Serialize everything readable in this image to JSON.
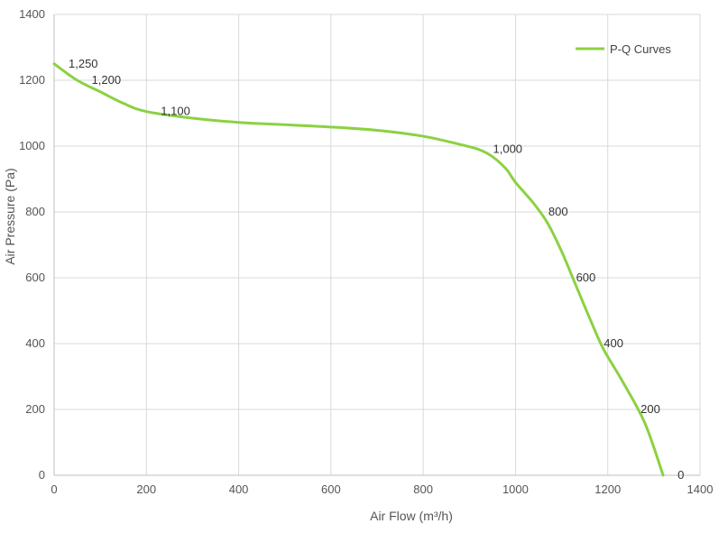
{
  "chart_data": {
    "type": "line",
    "xlabel": "Air Flow  (m³/h)",
    "ylabel": "Air Pressure  (Pa)",
    "xlim": [
      0,
      1400
    ],
    "ylim": [
      0,
      1400
    ],
    "xticks": [
      0,
      200,
      400,
      600,
      800,
      1000,
      1200,
      1400
    ],
    "yticks": [
      0,
      200,
      400,
      600,
      800,
      1000,
      1200,
      1400
    ],
    "grid": true,
    "legend_position": "top-right",
    "series": [
      {
        "name": "P-Q Curves",
        "color": "#8cd142",
        "x": [
          0,
          50,
          100,
          150,
          200,
          300,
          400,
          500,
          600,
          700,
          800,
          880,
          920,
          950,
          980,
          1000,
          1040,
          1070,
          1100,
          1130,
          1160,
          1190,
          1230,
          1280,
          1320
        ],
        "y": [
          1250,
          1200,
          1165,
          1130,
          1105,
          1085,
          1072,
          1065,
          1058,
          1048,
          1030,
          1005,
          990,
          968,
          930,
          890,
          825,
          765,
          680,
          580,
          480,
          385,
          290,
          160,
          0
        ]
      }
    ],
    "data_labels": [
      {
        "text": "1,250",
        "x": 0,
        "y": 1250
      },
      {
        "text": "1,200",
        "x": 50,
        "y": 1200
      },
      {
        "text": "1,100",
        "x": 200,
        "y": 1105
      },
      {
        "text": "1,000",
        "x": 920,
        "y": 990
      },
      {
        "text": "800",
        "x": 1040,
        "y": 800
      },
      {
        "text": "600",
        "x": 1100,
        "y": 600
      },
      {
        "text": "400",
        "x": 1160,
        "y": 400
      },
      {
        "text": "200",
        "x": 1240,
        "y": 200
      },
      {
        "text": "0",
        "x": 1320,
        "y": 0
      }
    ]
  }
}
